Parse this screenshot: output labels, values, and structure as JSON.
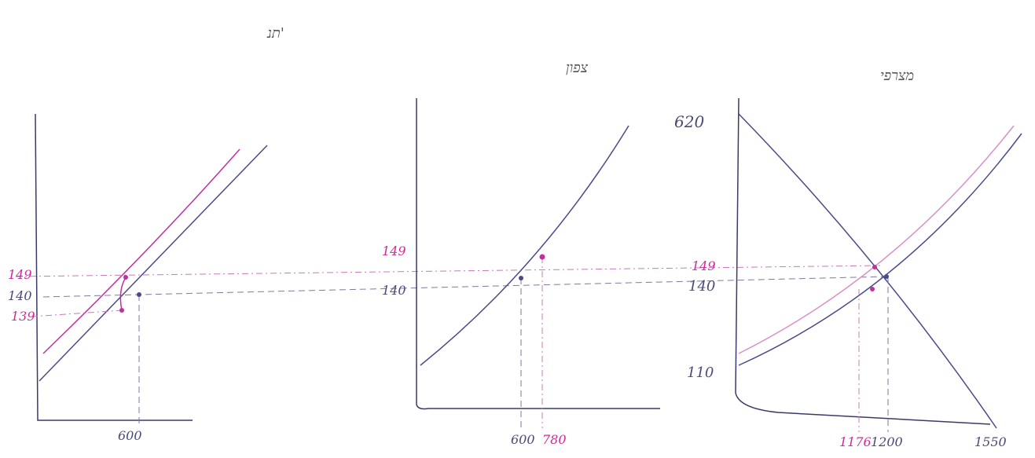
{
  "panels": [
    {
      "title": "תנ'",
      "y_labels": [
        "149",
        "140",
        "139"
      ],
      "x_labels": [
        "600"
      ]
    },
    {
      "title": "צפון",
      "y_labels": [
        "149",
        "140"
      ],
      "x_labels": [
        "600",
        "780"
      ]
    },
    {
      "title": "מצרפי",
      "y_labels": [
        "620",
        "149",
        "140",
        "110"
      ],
      "x_labels": [
        "1176",
        "1200",
        "1550"
      ]
    }
  ]
}
